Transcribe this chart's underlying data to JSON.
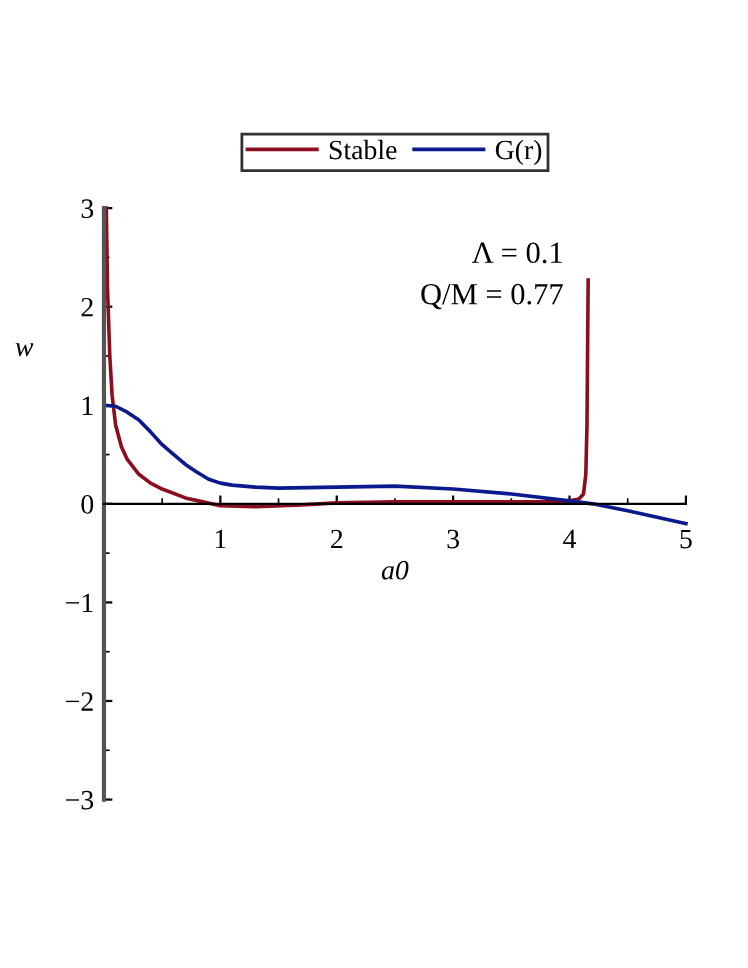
{
  "chart_data": {
    "type": "line",
    "xlabel": "a0",
    "ylabel": "w",
    "xlim": [
      0,
      5
    ],
    "ylim": [
      -3,
      3
    ],
    "xticks": [
      1,
      2,
      3,
      4,
      5
    ],
    "yticks": [
      -3,
      -2,
      -1,
      0,
      1,
      2,
      3
    ],
    "grid": false,
    "legend": "top",
    "marker": "none",
    "line_style": "solid",
    "annotations": [
      "Λ = 0.1",
      "Q/M = 0.77"
    ],
    "series": [
      {
        "name": "Stable",
        "color": "#8b0e1e",
        "x": [
          0.02,
          0.03,
          0.05,
          0.07,
          0.1,
          0.15,
          0.2,
          0.3,
          0.4,
          0.5,
          0.7,
          0.85,
          1.0,
          1.3,
          1.7,
          2.0,
          2.5,
          3.0,
          3.5,
          3.8,
          4.0,
          4.08,
          4.12,
          4.14,
          4.15,
          4.16
        ],
        "values": [
          3.0,
          2.2,
          1.5,
          1.1,
          0.8,
          0.58,
          0.45,
          0.3,
          0.21,
          0.15,
          0.06,
          0.02,
          -0.02,
          -0.03,
          -0.01,
          0.01,
          0.02,
          0.02,
          0.02,
          0.02,
          0.03,
          0.05,
          0.1,
          0.3,
          0.8,
          2.27
        ]
      },
      {
        "name": "G(r)",
        "color": "#0a1a8c",
        "x": [
          0.0,
          0.1,
          0.2,
          0.3,
          0.4,
          0.5,
          0.6,
          0.7,
          0.8,
          0.9,
          1.0,
          1.1,
          1.3,
          1.5,
          2.0,
          2.5,
          3.0,
          3.5,
          4.0,
          4.2,
          4.5,
          5.0
        ],
        "values": [
          1.0,
          0.99,
          0.93,
          0.85,
          0.73,
          0.6,
          0.5,
          0.4,
          0.32,
          0.25,
          0.21,
          0.19,
          0.17,
          0.16,
          0.17,
          0.18,
          0.15,
          0.1,
          0.03,
          0.0,
          -0.07,
          -0.2
        ]
      }
    ]
  }
}
